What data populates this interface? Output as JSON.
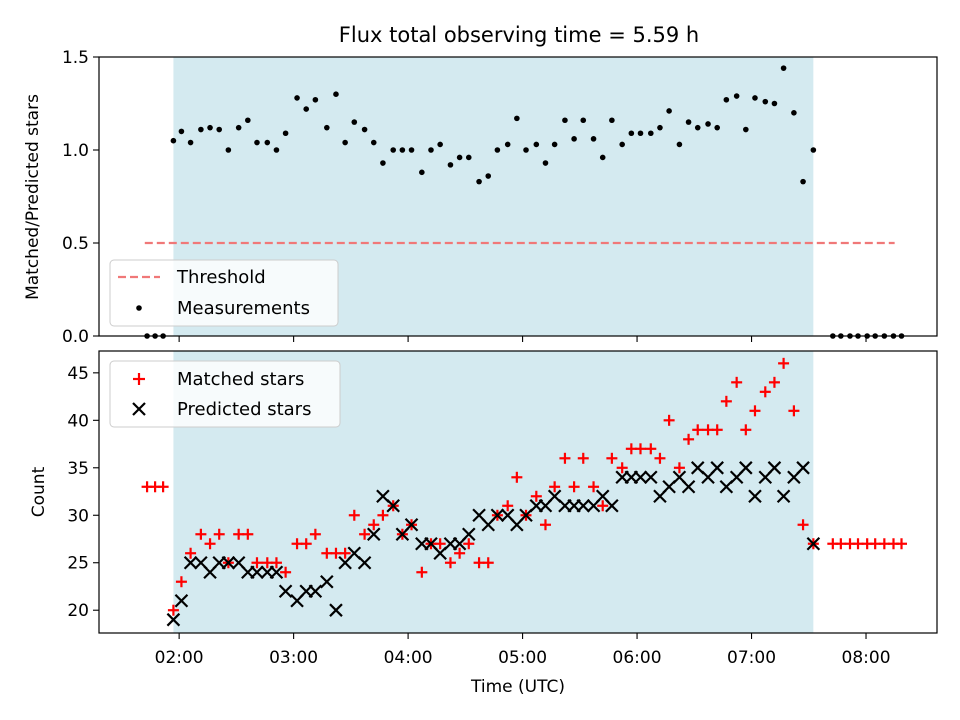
{
  "chart_data": [
    {
      "type": "scatter",
      "title": "Flux total observing time = 5.59 h",
      "ylabel": "Matched/Predicted stars",
      "xlabel": "",
      "x_unit": "hours UTC",
      "xlim": [
        1.3,
        8.62
      ],
      "ylim": [
        0,
        1.5
      ],
      "yticks": [
        "0.0",
        "0.5",
        "1.0",
        "1.5"
      ],
      "xticks": [
        2,
        3,
        4,
        5,
        6,
        7,
        8
      ],
      "observing_window": [
        1.95,
        7.54
      ],
      "shade_color": "#d4eaf0",
      "legend": {
        "placement": "lower-left",
        "entries": [
          "Threshold",
          "Measurements"
        ]
      },
      "series": [
        {
          "name": "Threshold",
          "kind": "dashed-line",
          "color": "#f07878",
          "x": [
            1.7,
            8.25
          ],
          "y": [
            0.5,
            0.5
          ]
        },
        {
          "name": "Measurements",
          "kind": "points",
          "color": "#000000",
          "x": [
            1.72,
            1.79,
            1.86,
            1.95,
            2.02,
            2.1,
            2.19,
            2.27,
            2.35,
            2.43,
            2.52,
            2.6,
            2.68,
            2.77,
            2.85,
            2.93,
            3.03,
            3.11,
            3.19,
            3.29,
            3.37,
            3.45,
            3.53,
            3.62,
            3.7,
            3.78,
            3.87,
            3.95,
            4.03,
            4.12,
            4.2,
            4.28,
            4.37,
            4.45,
            4.53,
            4.62,
            4.7,
            4.78,
            4.87,
            4.95,
            5.03,
            5.12,
            5.2,
            5.28,
            5.37,
            5.45,
            5.53,
            5.62,
            5.7,
            5.78,
            5.87,
            5.95,
            6.03,
            6.12,
            6.2,
            6.28,
            6.37,
            6.45,
            6.53,
            6.62,
            6.7,
            6.78,
            6.87,
            6.95,
            7.03,
            7.12,
            7.2,
            7.28,
            7.37,
            7.45,
            7.54,
            7.71,
            7.78,
            7.86,
            7.93,
            8.01,
            8.08,
            8.16,
            8.24,
            8.31
          ],
          "y": [
            0.0,
            0.0,
            0.0,
            1.05,
            1.1,
            1.04,
            1.11,
            1.12,
            1.11,
            1.0,
            1.12,
            1.16,
            1.04,
            1.04,
            1.0,
            1.09,
            1.28,
            1.22,
            1.27,
            1.12,
            1.3,
            1.04,
            1.15,
            1.11,
            1.04,
            0.93,
            1.0,
            1.0,
            1.0,
            0.88,
            1.0,
            1.03,
            0.92,
            0.96,
            0.96,
            0.83,
            0.86,
            1.0,
            1.03,
            1.17,
            1.0,
            1.03,
            0.93,
            1.03,
            1.16,
            1.06,
            1.16,
            1.06,
            0.96,
            1.16,
            1.03,
            1.09,
            1.09,
            1.09,
            1.12,
            1.21,
            1.03,
            1.15,
            1.12,
            1.14,
            1.12,
            1.27,
            1.29,
            1.11,
            1.28,
            1.26,
            1.25,
            1.44,
            1.2,
            0.83,
            1.0,
            0.0,
            0.0,
            0.0,
            0.0,
            0.0,
            0.0,
            0.0,
            0.0,
            0.0
          ]
        }
      ]
    },
    {
      "type": "scatter",
      "title": "",
      "ylabel": "Count",
      "xlabel": "Time (UTC)",
      "x_unit": "hours UTC",
      "xlim": [
        1.3,
        8.62
      ],
      "ylim": [
        17.6,
        47.3
      ],
      "yticks": [
        "20",
        "25",
        "30",
        "35",
        "40",
        "45"
      ],
      "xticks": [
        "02:00",
        "03:00",
        "04:00",
        "05:00",
        "06:00",
        "07:00",
        "08:00"
      ],
      "observing_window": [
        1.95,
        7.54
      ],
      "shade_color": "#d4eaf0",
      "legend": {
        "placement": "upper-left",
        "entries": [
          "Matched stars",
          "Predicted stars"
        ]
      },
      "series": [
        {
          "name": "Matched stars",
          "marker": "plus",
          "color": "#ff0000",
          "x": [
            1.72,
            1.79,
            1.86,
            1.95,
            2.02,
            2.1,
            2.19,
            2.27,
            2.35,
            2.43,
            2.52,
            2.6,
            2.68,
            2.77,
            2.85,
            2.93,
            3.03,
            3.11,
            3.19,
            3.29,
            3.37,
            3.45,
            3.53,
            3.62,
            3.7,
            3.78,
            3.87,
            3.95,
            4.03,
            4.12,
            4.2,
            4.28,
            4.37,
            4.45,
            4.53,
            4.62,
            4.7,
            4.78,
            4.87,
            4.95,
            5.03,
            5.12,
            5.2,
            5.28,
            5.37,
            5.45,
            5.53,
            5.62,
            5.7,
            5.78,
            5.87,
            5.95,
            6.03,
            6.12,
            6.2,
            6.28,
            6.37,
            6.45,
            6.53,
            6.62,
            6.7,
            6.78,
            6.87,
            6.95,
            7.03,
            7.12,
            7.2,
            7.28,
            7.37,
            7.45,
            7.54,
            7.71,
            7.78,
            7.86,
            7.93,
            8.01,
            8.08,
            8.16,
            8.24,
            8.31
          ],
          "y": [
            33,
            33,
            33,
            20,
            23,
            26,
            28,
            27,
            28,
            25,
            28,
            28,
            25,
            25,
            25,
            24,
            27,
            27,
            28,
            26,
            26,
            26,
            30,
            28,
            29,
            30,
            31,
            28,
            29,
            24,
            27,
            27,
            25,
            26,
            27,
            25,
            25,
            30,
            31,
            34,
            30,
            32,
            29,
            33,
            36,
            33,
            36,
            33,
            31,
            36,
            35,
            37,
            37,
            37,
            36,
            40,
            35,
            38,
            39,
            39,
            39,
            42,
            44,
            39,
            41,
            43,
            44,
            46,
            41,
            29,
            27,
            27,
            27,
            27,
            27,
            27,
            27,
            27,
            27,
            27
          ]
        },
        {
          "name": "Predicted stars",
          "marker": "x",
          "color": "#000000",
          "x": [
            1.95,
            2.02,
            2.1,
            2.19,
            2.27,
            2.35,
            2.43,
            2.52,
            2.6,
            2.68,
            2.77,
            2.85,
            2.93,
            3.03,
            3.11,
            3.19,
            3.29,
            3.37,
            3.45,
            3.53,
            3.62,
            3.7,
            3.78,
            3.87,
            3.95,
            4.03,
            4.12,
            4.2,
            4.28,
            4.37,
            4.45,
            4.53,
            4.62,
            4.7,
            4.78,
            4.87,
            4.95,
            5.03,
            5.12,
            5.2,
            5.28,
            5.37,
            5.45,
            5.53,
            5.62,
            5.7,
            5.78,
            5.87,
            5.95,
            6.03,
            6.12,
            6.2,
            6.28,
            6.37,
            6.45,
            6.53,
            6.62,
            6.7,
            6.78,
            6.87,
            6.95,
            7.03,
            7.12,
            7.2,
            7.28,
            7.37,
            7.45,
            7.54
          ],
          "y": [
            19,
            21,
            25,
            25,
            24,
            25,
            25,
            25,
            24,
            24,
            24,
            24,
            22,
            21,
            22,
            22,
            23,
            20,
            25,
            26,
            25,
            28,
            32,
            31,
            28,
            29,
            27,
            27,
            26,
            27,
            27,
            28,
            30,
            29,
            30,
            30,
            29,
            30,
            31,
            31,
            32,
            31,
            31,
            31,
            31,
            32,
            31,
            34,
            34,
            34,
            34,
            32,
            33,
            34,
            33,
            35,
            34,
            35,
            33,
            34,
            35,
            32,
            34,
            35,
            32,
            34,
            35,
            27
          ]
        }
      ]
    }
  ]
}
